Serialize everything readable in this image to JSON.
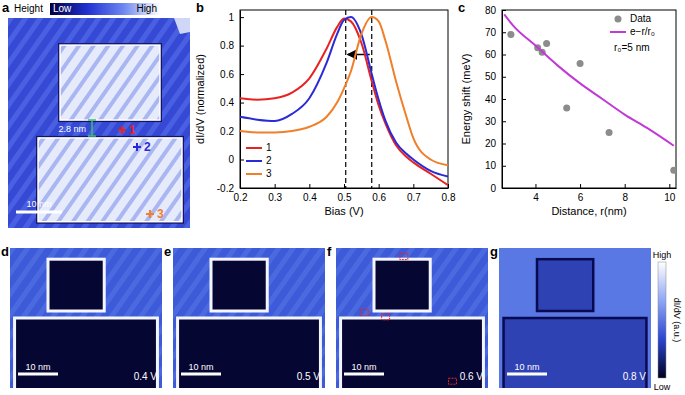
{
  "topography": {
    "label": "a",
    "colorbar": {
      "title": "Height",
      "low": "Low",
      "high": "High"
    },
    "markers": [
      {
        "label": "1",
        "color": "#e8231f"
      },
      {
        "label": "2",
        "color": "#2a2ad6"
      },
      {
        "label": "3",
        "color": "#f07f2a"
      }
    ],
    "gap_label": "2.8 nm",
    "scalebar": "10 nm"
  },
  "chart_data": [
    {
      "label": "b",
      "type": "line",
      "x_label": "Bias (V)",
      "y_label": "dI/dV (normalized)",
      "x": [
        0.2,
        0.25,
        0.3,
        0.35,
        0.4,
        0.45,
        0.48,
        0.5,
        0.52,
        0.55,
        0.58,
        0.6,
        0.62,
        0.65,
        0.68,
        0.7,
        0.75,
        0.8
      ],
      "series": [
        {
          "name": "1",
          "color": "#e8231f",
          "values": [
            0.43,
            0.42,
            0.43,
            0.47,
            0.57,
            0.78,
            0.93,
            0.99,
            0.97,
            0.82,
            0.55,
            0.38,
            0.25,
            0.1,
            0.02,
            -0.02,
            -0.1,
            -0.18
          ]
        },
        {
          "name": "2",
          "color": "#2a2ad6",
          "values": [
            0.3,
            0.28,
            0.27,
            0.32,
            0.43,
            0.68,
            0.88,
            0.98,
            1,
            0.88,
            0.6,
            0.42,
            0.27,
            0.12,
            0.04,
            0,
            -0.08,
            -0.12
          ]
        },
        {
          "name": "3",
          "color": "#f07f2a",
          "values": [
            0.2,
            0.19,
            0.19,
            0.2,
            0.23,
            0.3,
            0.4,
            0.5,
            0.62,
            0.88,
            1,
            0.97,
            0.83,
            0.55,
            0.3,
            0.15,
            0,
            -0.04
          ]
        }
      ],
      "reference_lines": [
        0.505,
        0.58
      ],
      "xlim": [
        0.2,
        0.8
      ],
      "ylim": [
        -0.2,
        1.05
      ],
      "xticks": [
        0.2,
        0.3,
        0.4,
        0.5,
        0.6,
        0.7,
        0.8
      ],
      "yticks": [
        -0.2,
        0,
        0.2,
        0.4,
        0.6,
        0.8,
        1
      ],
      "legend": "lower left"
    },
    {
      "label": "c",
      "type": "scatter",
      "x_label": "Distance, r(nm)",
      "y_label": "Energy shift (meV)",
      "series": [
        {
          "name": "Data",
          "type": "scatter",
          "marker": "circle",
          "color": "#8c8c8c",
          "x": [
            2.9,
            4.1,
            4.3,
            4.5,
            5.4,
            6.0,
            7.3,
            10.2
          ],
          "values": [
            69,
            63,
            61,
            65,
            36,
            56,
            25,
            8
          ]
        },
        {
          "name": "e−r/r₀",
          "type": "line",
          "color": "#c13ad6",
          "x": [
            2.6,
            3,
            4,
            5,
            6,
            7,
            8,
            9,
            10.2
          ],
          "values": [
            78,
            73,
            64,
            55,
            47,
            40,
            33,
            27,
            19
          ]
        }
      ],
      "annotation": "r₀=5 nm",
      "xlim": [
        2.5,
        10.3
      ],
      "ylim": [
        0,
        80
      ],
      "xticks": [
        4,
        6,
        8,
        10
      ],
      "yticks": [
        0,
        10,
        20,
        30,
        40,
        50,
        60,
        70,
        80
      ],
      "legend": "upper right"
    }
  ],
  "maps": {
    "colorbar": {
      "title": "dI/dV (a.u.)",
      "high": "High",
      "low": "Low"
    },
    "panels": [
      {
        "label": "d",
        "bias": "0.4 V",
        "scalebar": "10 nm"
      },
      {
        "label": "e",
        "bias": "0.5 V",
        "scalebar": "10 nm"
      },
      {
        "label": "f",
        "bias": "0.6 V",
        "scalebar": "10 nm"
      },
      {
        "label": "g",
        "bias": "0.8 V",
        "scalebar": "10 nm"
      }
    ]
  }
}
